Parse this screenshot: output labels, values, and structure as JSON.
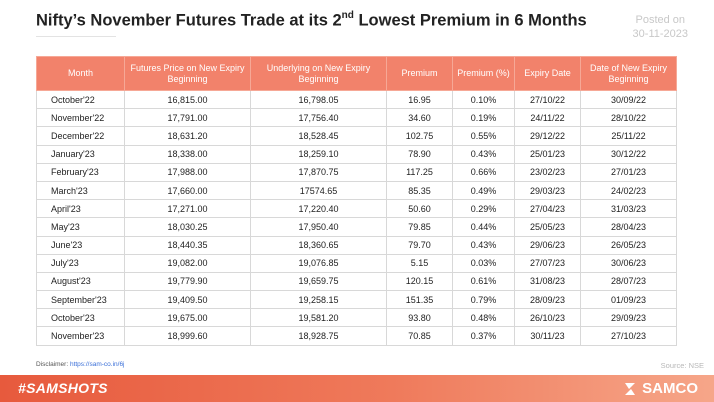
{
  "title": {
    "pre": "Nifty’s November Futures Trade at its 2",
    "sup": "nd",
    "post": " Lowest Premium in 6 Months"
  },
  "posted": {
    "line1": "Posted on",
    "line2": "30-11-2023"
  },
  "table": {
    "headers": [
      "Month",
      "Futures Price on New Expiry Beginning",
      "Underlying on New Expiry Beginning",
      "Premium",
      "Premium (%)",
      "Expiry Date",
      "Date of New Expiry Beginning"
    ],
    "rows": [
      [
        "October'22",
        "16,815.00",
        "16,798.05",
        "16.95",
        "0.10%",
        "27/10/22",
        "30/09/22"
      ],
      [
        "November'22",
        "17,791.00",
        "17,756.40",
        "34.60",
        "0.19%",
        "24/11/22",
        "28/10/22"
      ],
      [
        "December'22",
        "18,631.20",
        "18,528.45",
        "102.75",
        "0.55%",
        "29/12/22",
        "25/11/22"
      ],
      [
        "January'23",
        "18,338.00",
        "18,259.10",
        "78.90",
        "0.43%",
        "25/01/23",
        "30/12/22"
      ],
      [
        "February'23",
        "17,988.00",
        "17,870.75",
        "117.25",
        "0.66%",
        "23/02/23",
        "27/01/23"
      ],
      [
        "March'23",
        "17,660.00",
        "17574.65",
        "85.35",
        "0.49%",
        "29/03/23",
        "24/02/23"
      ],
      [
        "April'23",
        "17,271.00",
        "17,220.40",
        "50.60",
        "0.29%",
        "27/04/23",
        "31/03/23"
      ],
      [
        "May'23",
        "18,030.25",
        "17,950.40",
        "79.85",
        "0.44%",
        "25/05/23",
        "28/04/23"
      ],
      [
        "June'23",
        "18,440.35",
        "18,360.65",
        "79.70",
        "0.43%",
        "29/06/23",
        "26/05/23"
      ],
      [
        "July'23",
        "19,082.00",
        "19,076.85",
        "5.15",
        "0.03%",
        "27/07/23",
        "30/06/23"
      ],
      [
        "August'23",
        "19,779.90",
        "19,659.75",
        "120.15",
        "0.61%",
        "31/08/23",
        "28/07/23"
      ],
      [
        "September'23",
        "19,409.50",
        "19,258.15",
        "151.35",
        "0.79%",
        "28/09/23",
        "01/09/23"
      ],
      [
        "October'23",
        "19,675.00",
        "19,581.20",
        "93.80",
        "0.48%",
        "26/10/23",
        "29/09/23"
      ],
      [
        "November'23",
        "18,999.60",
        "18,928.75",
        "70.85",
        "0.37%",
        "30/11/23",
        "27/10/23"
      ]
    ]
  },
  "disclaimer": {
    "label": "Disclaimer: ",
    "link": "https://sam-co.in/6j"
  },
  "source": "Source:  NSE",
  "footer": {
    "hashtag": "#SAMSHOTS",
    "brand": "SAMCO",
    "brand_icon": "samco-logo-icon"
  },
  "colors": {
    "header_bg": "#f2826b",
    "footer_start": "#e75a3d",
    "footer_end": "#f6a689"
  }
}
